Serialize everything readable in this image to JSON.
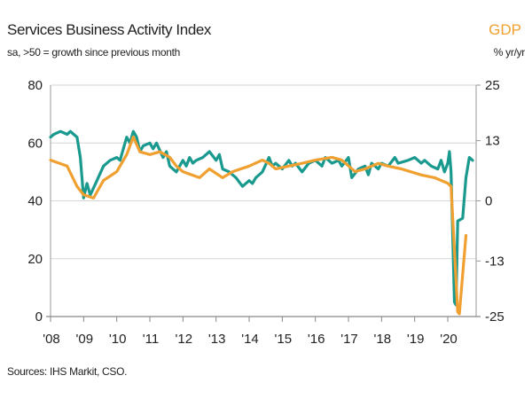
{
  "chart_data": {
    "type": "line",
    "title": "Services Business Activity Index",
    "subtitle": "sa, >50 = growth since previous month",
    "right_title": "GDP",
    "right_subtitle": "% yr/yr",
    "source": "Sources: IHS Markit, CSO.",
    "x_ticks": [
      "'08",
      "'09",
      "'10",
      "'11",
      "'12",
      "'13",
      "'14",
      "'15",
      "'16",
      "'17",
      "'18",
      "'19",
      "'20"
    ],
    "xlim": [
      2008,
      2020.9
    ],
    "y_left": {
      "ticks": [
        "0",
        "20",
        "40",
        "60",
        "80"
      ],
      "lim": [
        0,
        80
      ]
    },
    "y_right": {
      "ticks": [
        "-25",
        "-13",
        "0",
        "13",
        "25"
      ],
      "lim": [
        -25,
        25
      ]
    },
    "grid": true,
    "colors": {
      "index": "#1a9a8e",
      "gdp": "#f0a030"
    },
    "series": [
      {
        "axis": "left",
        "color": "#1a9a8e",
        "x": [
          2008.0,
          2008.1,
          2008.3,
          2008.5,
          2008.6,
          2008.7,
          2008.8,
          2008.9,
          2009.0,
          2009.1,
          2009.2,
          2009.4,
          2009.6,
          2009.8,
          2010.0,
          2010.1,
          2010.2,
          2010.3,
          2010.4,
          2010.5,
          2010.6,
          2010.7,
          2010.8,
          2011.0,
          2011.1,
          2011.2,
          2011.4,
          2011.5,
          2011.6,
          2011.8,
          2012.0,
          2012.1,
          2012.2,
          2012.3,
          2012.4,
          2012.6,
          2012.8,
          2013.0,
          2013.1,
          2013.2,
          2013.4,
          2013.6,
          2013.8,
          2014.0,
          2014.1,
          2014.2,
          2014.4,
          2014.6,
          2014.7,
          2014.8,
          2015.0,
          2015.2,
          2015.3,
          2015.4,
          2015.6,
          2015.8,
          2016.0,
          2016.2,
          2016.3,
          2016.5,
          2016.7,
          2016.8,
          2017.0,
          2017.1,
          2017.3,
          2017.5,
          2017.6,
          2017.7,
          2017.9,
          2018.0,
          2018.2,
          2018.4,
          2018.5,
          2018.8,
          2019.0,
          2019.2,
          2019.3,
          2019.5,
          2019.7,
          2019.8,
          2019.9,
          2020.0,
          2020.05,
          2020.1,
          2020.2,
          2020.25,
          2020.3,
          2020.45,
          2020.55,
          2020.65,
          2020.75
        ],
        "values": [
          62,
          63,
          64,
          63,
          64,
          63,
          62,
          55,
          41,
          46,
          42,
          47,
          52,
          54,
          55,
          54,
          58,
          62,
          60,
          64,
          62,
          57,
          59,
          60,
          58,
          60,
          55,
          57,
          52,
          50,
          54,
          52,
          55,
          53,
          54,
          55,
          57,
          54,
          56,
          51,
          50,
          48,
          45,
          47,
          46,
          48,
          50,
          55,
          52,
          53,
          51,
          54,
          52,
          53,
          50,
          53,
          54,
          52,
          55,
          53,
          54,
          52,
          55,
          48,
          51,
          52,
          49,
          53,
          51,
          53,
          52,
          55,
          53,
          54,
          55,
          53,
          54,
          52,
          51,
          54,
          50,
          53,
          57,
          50,
          5,
          4,
          33,
          34,
          48,
          55,
          54
        ]
      },
      {
        "axis": "right",
        "color": "#f0a030",
        "x": [
          2008.0,
          2008.5,
          2008.8,
          2009.0,
          2009.3,
          2009.6,
          2010.0,
          2010.3,
          2010.5,
          2010.7,
          2011.0,
          2011.3,
          2011.6,
          2011.8,
          2012.0,
          2012.5,
          2012.8,
          2013.2,
          2013.5,
          2014.0,
          2014.4,
          2014.6,
          2014.8,
          2015.2,
          2015.6,
          2016.0,
          2016.5,
          2016.8,
          2017.2,
          2017.5,
          2017.9,
          2018.2,
          2018.6,
          2019.2,
          2019.6,
          2020.0,
          2020.1,
          2020.3,
          2020.35,
          2020.55
        ],
        "values": [
          8.8,
          7.5,
          3.1,
          1.3,
          0.6,
          4.4,
          6.3,
          10,
          13.8,
          10.6,
          10,
          10.6,
          9.4,
          7.5,
          6.3,
          5,
          6.9,
          5,
          6.3,
          7.5,
          8.8,
          8.1,
          6.9,
          7.5,
          8.1,
          8.8,
          9.4,
          8.8,
          6.3,
          6.9,
          8.1,
          7.5,
          6.9,
          5.6,
          5,
          3.8,
          3.1,
          -24,
          -24.4,
          -7.5
        ]
      }
    ]
  }
}
